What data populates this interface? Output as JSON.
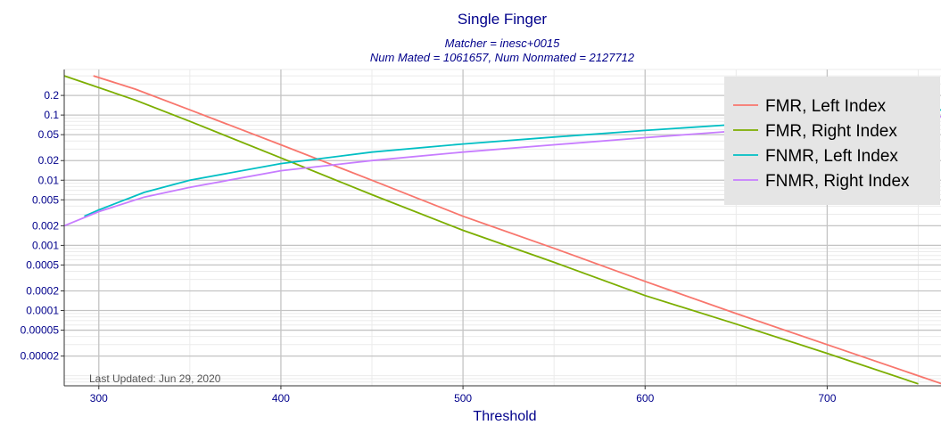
{
  "chart_data": {
    "type": "line",
    "title": "Single Finger",
    "subtitle_lines": [
      "Matcher = inesc+0015",
      "Num Mated = 1061657, Num Nonmated = 2127712"
    ],
    "xlabel": "Threshold",
    "ylabel": "",
    "xlim": [
      281,
      763
    ],
    "ylim": [
      7e-06,
      0.5
    ],
    "y_scale": "log",
    "grid": true,
    "x_ticks": [
      300,
      400,
      500,
      600,
      700
    ],
    "x_tick_labels": [
      "300",
      "400",
      "500",
      "600",
      "700"
    ],
    "y_ticks": [
      0.2,
      0.1,
      0.05,
      0.02,
      0.01,
      0.005,
      0.002,
      0.001,
      0.0005,
      0.0002,
      0.0001,
      5e-05,
      2e-05
    ],
    "y_tick_labels": [
      "0.2",
      "0.1",
      "0.05",
      "0.02",
      "0.01",
      "0.005",
      "0.002",
      "0.001",
      "0.0005",
      "0.0002",
      "0.0001",
      "0.00005",
      "0.00002"
    ],
    "legend_position": "top-right",
    "annotation": "Last Updated: Jun 29, 2020",
    "series": [
      {
        "name": "FMR, Left Index",
        "color": "#f8766d",
        "x": [
          297,
          320,
          350,
          400,
          450,
          500,
          550,
          600,
          650,
          700,
          763
        ],
        "y": [
          0.4,
          0.25,
          0.12,
          0.035,
          0.01,
          0.0028,
          0.0009,
          0.00028,
          9e-05,
          3e-05,
          7.5e-06
        ]
      },
      {
        "name": "FMR, Right Index",
        "color": "#7cae00",
        "x": [
          281,
          320,
          350,
          400,
          450,
          500,
          550,
          600,
          650,
          700,
          750
        ],
        "y": [
          0.4,
          0.17,
          0.08,
          0.022,
          0.006,
          0.0017,
          0.00055,
          0.00017,
          6.2e-05,
          2.2e-05,
          7.5e-06
        ]
      },
      {
        "name": "FNMR, Left Index",
        "color": "#00bfc4",
        "x": [
          292,
          300,
          325,
          350,
          400,
          450,
          500,
          550,
          600,
          650,
          700,
          763
        ],
        "y": [
          0.0028,
          0.0035,
          0.0065,
          0.01,
          0.018,
          0.027,
          0.036,
          0.046,
          0.058,
          0.072,
          0.09,
          0.12
        ]
      },
      {
        "name": "FNMR, Right Index",
        "color": "#c77cff",
        "x": [
          281,
          300,
          325,
          350,
          400,
          450,
          500,
          550,
          600,
          650,
          700,
          763
        ],
        "y": [
          0.002,
          0.0033,
          0.0055,
          0.0078,
          0.014,
          0.02,
          0.027,
          0.035,
          0.045,
          0.057,
          0.072,
          0.095
        ]
      }
    ]
  }
}
